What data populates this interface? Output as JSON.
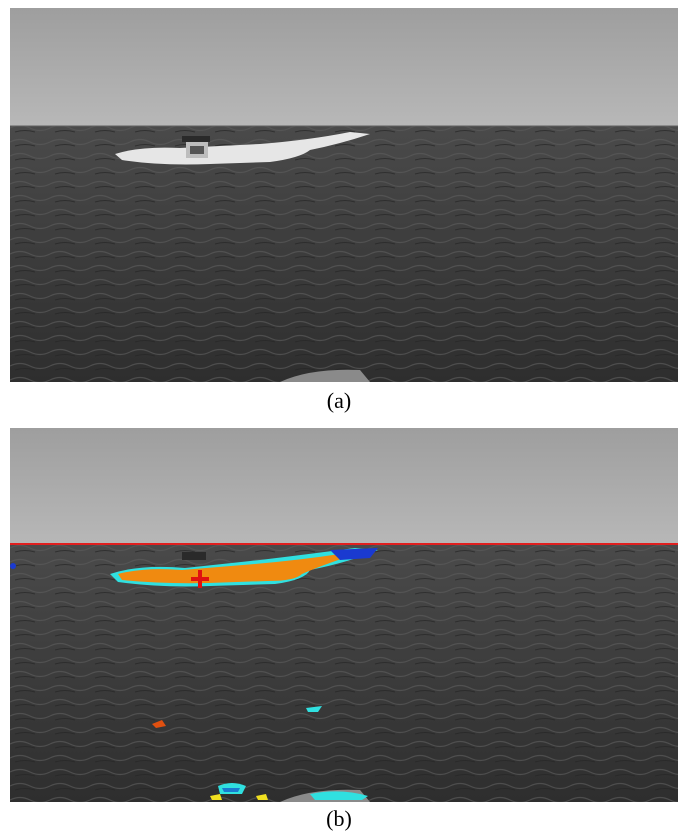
{
  "figure": {
    "panels": [
      {
        "caption": "(a)",
        "description_icon": "sea-boat-photo"
      },
      {
        "caption": "(b)",
        "description_icon": "sea-boat-segmentation-photo"
      }
    ],
    "colors": {
      "sky": "#9a9a9a",
      "sea": "#3a3a3a",
      "horizon_line": "#e02020",
      "segment_orange": "#f08a10",
      "segment_cyan": "#30e0e0",
      "segment_blue": "#1a3ad0",
      "segment_yellow": "#f0e020",
      "marker_red": "#e01010"
    }
  }
}
